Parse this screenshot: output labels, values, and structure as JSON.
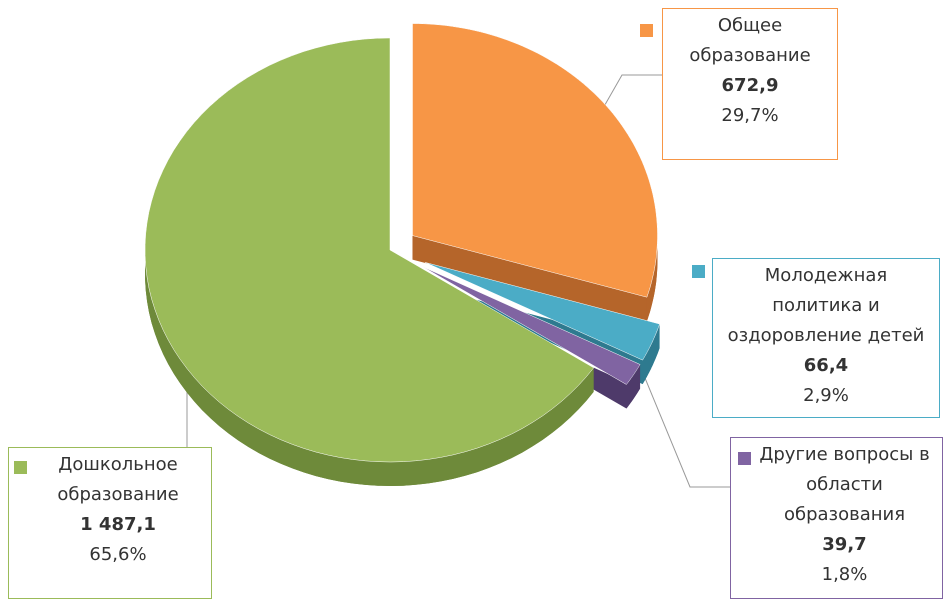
{
  "chart_data": {
    "type": "pie",
    "categories": [
      "Общее образование",
      "Молодежная политика и оздоровление детей",
      "Другие вопросы в области образования",
      "Дошкольное образование"
    ],
    "values": [
      672.9,
      66.4,
      39.7,
      1487.1
    ],
    "value_labels": [
      "672,9",
      "66,4",
      "39,7",
      "1 487,1"
    ],
    "percents": [
      29.7,
      2.9,
      1.8,
      65.6
    ],
    "percent_labels": [
      "29,7%",
      "2,9%",
      "1,8%",
      "65,6%"
    ],
    "colors": [
      "#f79646",
      "#4bacc6",
      "#8064a2",
      "#9bbb59"
    ],
    "sides": [
      "#b5652a",
      "#2e7a8f",
      "#4e3a6a",
      "#6e8a3a"
    ]
  }
}
